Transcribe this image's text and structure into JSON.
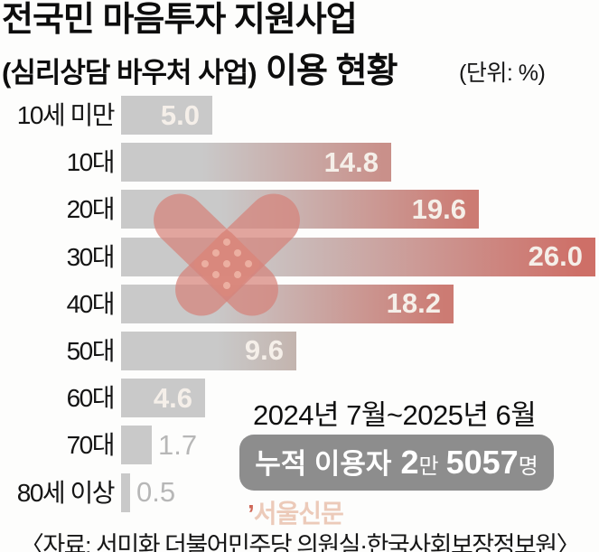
{
  "title": {
    "line1": "전국민 마음투자 지원사업",
    "line2_prefix": "(심리상담 바우처 사업)",
    "line2_emphasis": "이용 현황",
    "unit_note": "(단위: %)"
  },
  "chart_data": {
    "type": "bar",
    "orientation": "horizontal",
    "title": "전국민 마음투자 지원사업 (심리상담 바우처 사업) 이용 현황",
    "unit": "%",
    "categories": [
      "10세 미만",
      "10대",
      "20대",
      "30대",
      "40대",
      "50대",
      "60대",
      "70대",
      "80세 이상"
    ],
    "values": [
      5.0,
      14.8,
      19.6,
      26.0,
      18.2,
      9.6,
      4.6,
      1.7,
      0.5
    ],
    "value_labels": [
      "5.0",
      "14.8",
      "19.6",
      "26.0",
      "18.2",
      "9.6",
      "4.6",
      "1.7",
      "0.5"
    ],
    "xlim": [
      0,
      26.5
    ],
    "grid": false,
    "legend": false,
    "value_label_inside": [
      true,
      true,
      true,
      true,
      true,
      true,
      true,
      false,
      false
    ],
    "bar_fill": [
      "gray",
      "fade-salmon-light",
      "fade-salmon",
      "fade-salmon-strong",
      "fade-salmon",
      "gray-warm",
      "gray",
      "gray",
      "gray"
    ]
  },
  "annotations": {
    "period": "2024년 7월~2025년 6월",
    "badge": {
      "label": "누적 이용자",
      "big1": "2",
      "small1": "만",
      "big2": "5057",
      "small2": "명"
    }
  },
  "watermark": {
    "mark": "’",
    "text": "서울신문"
  },
  "source": "〈자료: 서미화 더불어민주당 의원실·한국사회보장정보원〉",
  "colors": {
    "bar_gray": "#c9c9c9",
    "salmon_light_end": "#c9908a",
    "salmon_end": "#cc7b73",
    "salmon_strong_end": "#ce6f67",
    "gray_warm_end": "#c3b4ae",
    "value_text_inside": "#f5efe9",
    "value_text_outside": "#b7b7b7",
    "badge_gray": "#8d8d8d",
    "watermark_pink": "#eccab9",
    "watermark_mark_red": "#cf6757",
    "bandaid_salmon": "#d6827a"
  }
}
